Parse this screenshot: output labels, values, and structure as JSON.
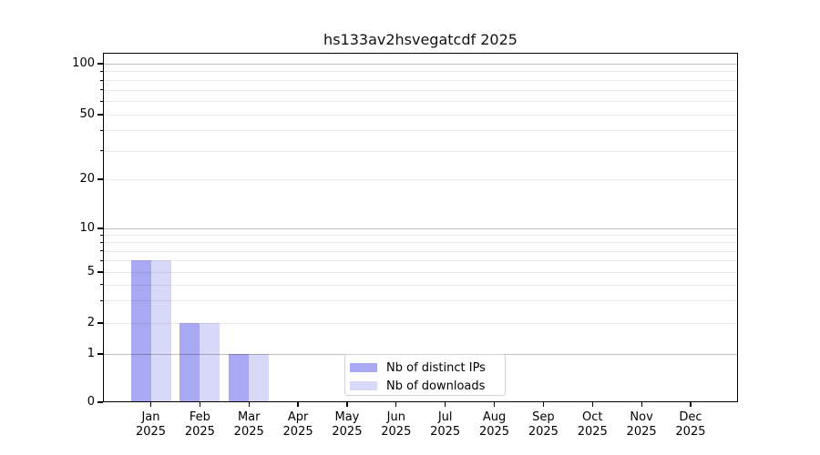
{
  "title": "hs133av2hsvegatcdf 2025",
  "chart_data": {
    "type": "bar",
    "title": "hs133av2hsvegatcdf 2025",
    "categories": [
      "Jan",
      "Feb",
      "Mar",
      "Apr",
      "May",
      "Jun",
      "Jul",
      "Aug",
      "Sep",
      "Oct",
      "Nov",
      "Dec"
    ],
    "year": "2025",
    "series": [
      {
        "name": "Nb of distinct IPs",
        "color": "#a8a8f3",
        "values": [
          6,
          2,
          1,
          0,
          0,
          0,
          0,
          0,
          0,
          0,
          0,
          0
        ]
      },
      {
        "name": "Nb of downloads",
        "color": "#d8d8f9",
        "values": [
          6,
          2,
          1,
          0,
          0,
          0,
          0,
          0,
          0,
          0,
          0,
          0
        ]
      }
    ],
    "yticks": [
      0,
      1,
      2,
      5,
      10,
      20,
      50,
      100
    ],
    "yscale": "log-like (0,1,2,5,10,20,50,100)",
    "ylim": [
      0,
      115
    ],
    "xlabel": "",
    "ylabel": "",
    "grid": "horizontal, minor + major (major at 1,10,100)",
    "legend_position": "bottom-center-inside",
    "bar_color_dark": "#a8a8f3",
    "bar_color_light": "#d8d8f9"
  }
}
